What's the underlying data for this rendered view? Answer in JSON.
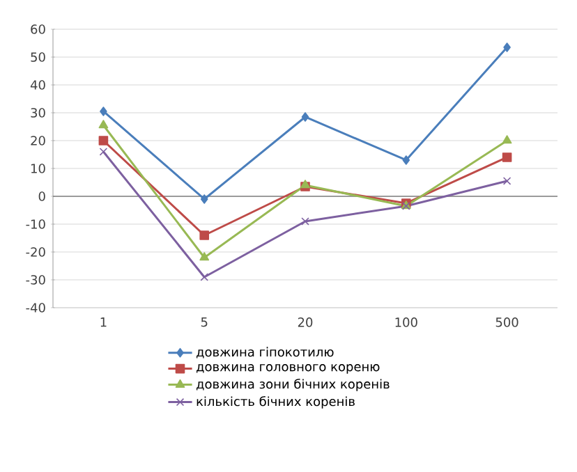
{
  "chart_data": {
    "type": "line",
    "categories": [
      "1",
      "5",
      "20",
      "100",
      "500"
    ],
    "ylim": [
      -40,
      60
    ],
    "yticks": [
      -40,
      -30,
      -20,
      -10,
      0,
      10,
      20,
      30,
      40,
      50,
      60
    ],
    "grid": "y",
    "legend": "bottom",
    "line_style": "solid",
    "series": [
      {
        "name": "довжина гіпокотилю",
        "color": "#4a7ebb",
        "marker": "diamond",
        "values": [
          30.5,
          -1,
          28.5,
          13,
          53.5
        ]
      },
      {
        "name": "довжина головного кореню",
        "color": "#be4b48",
        "marker": "square",
        "values": [
          20,
          -14,
          3.5,
          -2.5,
          14
        ]
      },
      {
        "name": "довжина зони бічних коренів",
        "color": "#98b954",
        "marker": "triangle",
        "values": [
          25.5,
          -22,
          4,
          -3.5,
          20
        ]
      },
      {
        "name": "кількість бічних коренів",
        "color": "#7d60a0",
        "marker": "cross",
        "values": [
          16,
          -29,
          -9,
          -3.5,
          5.5
        ]
      }
    ]
  }
}
